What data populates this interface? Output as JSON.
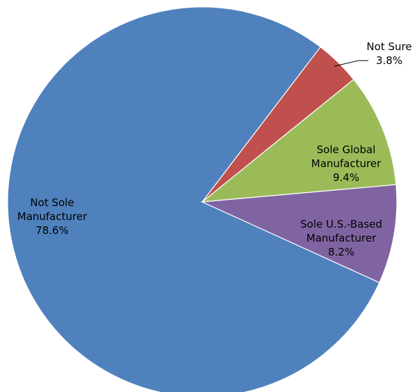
{
  "chart_data": {
    "type": "pie",
    "title": "",
    "slices": [
      {
        "label": "Not Sole Manufacturer",
        "label_lines": [
          "Not Sole",
          "Manufacturer"
        ],
        "value": 78.6,
        "value_label": "78.6%",
        "color": "#4F81BD"
      },
      {
        "label": "Not Sure",
        "label_lines": [
          "Not Sure"
        ],
        "value": 3.8,
        "value_label": "3.8%",
        "color": "#C0504D"
      },
      {
        "label": "Sole Global Manufacturer",
        "label_lines": [
          "Sole Global",
          "Manufacturer"
        ],
        "value": 9.4,
        "value_label": "9.4%",
        "color": "#9BBB59"
      },
      {
        "label": "Sole U.S.-Based Manufacturer",
        "label_lines": [
          "Sole U.S.-Based",
          "Manufacturer"
        ],
        "value": 8.2,
        "value_label": "8.2%",
        "color": "#8064A2"
      }
    ]
  }
}
